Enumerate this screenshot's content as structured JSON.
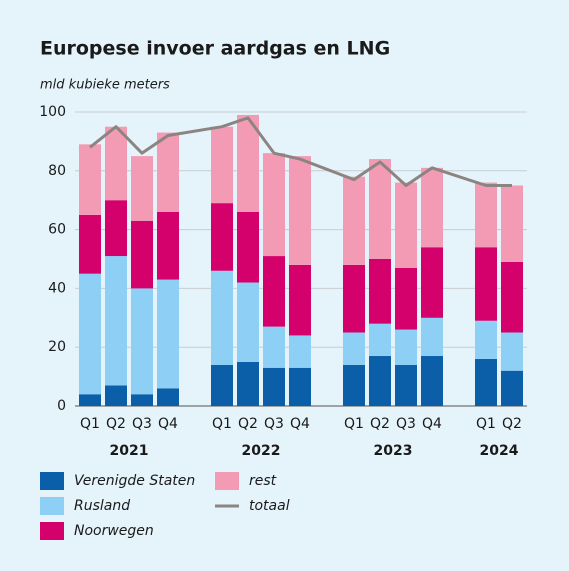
{
  "chart_data": {
    "type": "bar",
    "stacked": true,
    "title": "Europese invoer aardgas en LNG",
    "subtitle": "mld kubieke meters",
    "groups": [
      {
        "label": "2021",
        "categories": [
          "Q1",
          "Q2",
          "Q3",
          "Q4"
        ]
      },
      {
        "label": "2022",
        "categories": [
          "Q1",
          "Q2",
          "Q3",
          "Q4"
        ]
      },
      {
        "label": "2023",
        "categories": [
          "Q1",
          "Q2",
          "Q3",
          "Q4"
        ]
      },
      {
        "label": "2024",
        "categories": [
          "Q1",
          "Q2"
        ]
      }
    ],
    "series": [
      {
        "name": "Verenigde Staten",
        "color": "#0b5ea8",
        "values": [
          4,
          7,
          4,
          6,
          14,
          15,
          13,
          13,
          14,
          17,
          14,
          17,
          16,
          12
        ]
      },
      {
        "name": "Rusland",
        "color": "#8ed0f5",
        "values": [
          41,
          44,
          36,
          37,
          32,
          27,
          14,
          11,
          11,
          11,
          12,
          13,
          13,
          13
        ]
      },
      {
        "name": "Noorwegen",
        "color": "#d4006b",
        "values": [
          20,
          19,
          23,
          23,
          23,
          24,
          24,
          24,
          23,
          22,
          21,
          24,
          25,
          24
        ]
      },
      {
        "name": "rest",
        "color": "#f39bb5",
        "values": [
          24,
          25,
          22,
          27,
          26,
          33,
          35,
          37,
          30,
          34,
          29,
          27,
          22,
          26
        ]
      },
      {
        "name": "totaal",
        "color": "#8c8480",
        "kind": "line",
        "values": [
          88,
          95,
          86,
          92,
          95,
          98,
          86,
          84,
          77,
          83,
          75,
          81,
          75,
          75
        ]
      }
    ],
    "ylim": [
      0,
      100
    ],
    "yticks": [
      0,
      20,
      40,
      60,
      80,
      100
    ],
    "grid": true
  }
}
